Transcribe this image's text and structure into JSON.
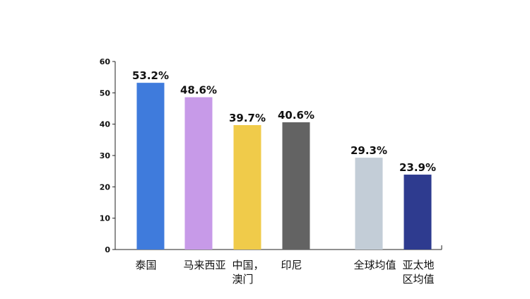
{
  "chart_data": {
    "type": "bar",
    "categories": [
      [
        "泰国"
      ],
      [
        "马来西亚"
      ],
      [
        "中国，",
        "澳门"
      ],
      [
        "印尼"
      ],
      [
        "全球均值"
      ],
      [
        "亚太地",
        "区均值"
      ]
    ],
    "values": [
      53.2,
      48.6,
      39.7,
      40.6,
      29.3,
      23.9
    ],
    "value_labels": [
      "53.2%",
      "48.6%",
      "39.7%",
      "40.6%",
      "29.3%",
      "23.9%"
    ],
    "colors": [
      "#3f7bdc",
      "#c79ae8",
      "#f0cb4a",
      "#636363",
      "#c3cdd7",
      "#2e3b8f"
    ],
    "ylim": [
      0,
      60
    ],
    "yticks": [
      0,
      10,
      20,
      30,
      40,
      50,
      60
    ],
    "title": "",
    "xlabel": "",
    "ylabel": "",
    "grid": false,
    "legend": "none"
  }
}
